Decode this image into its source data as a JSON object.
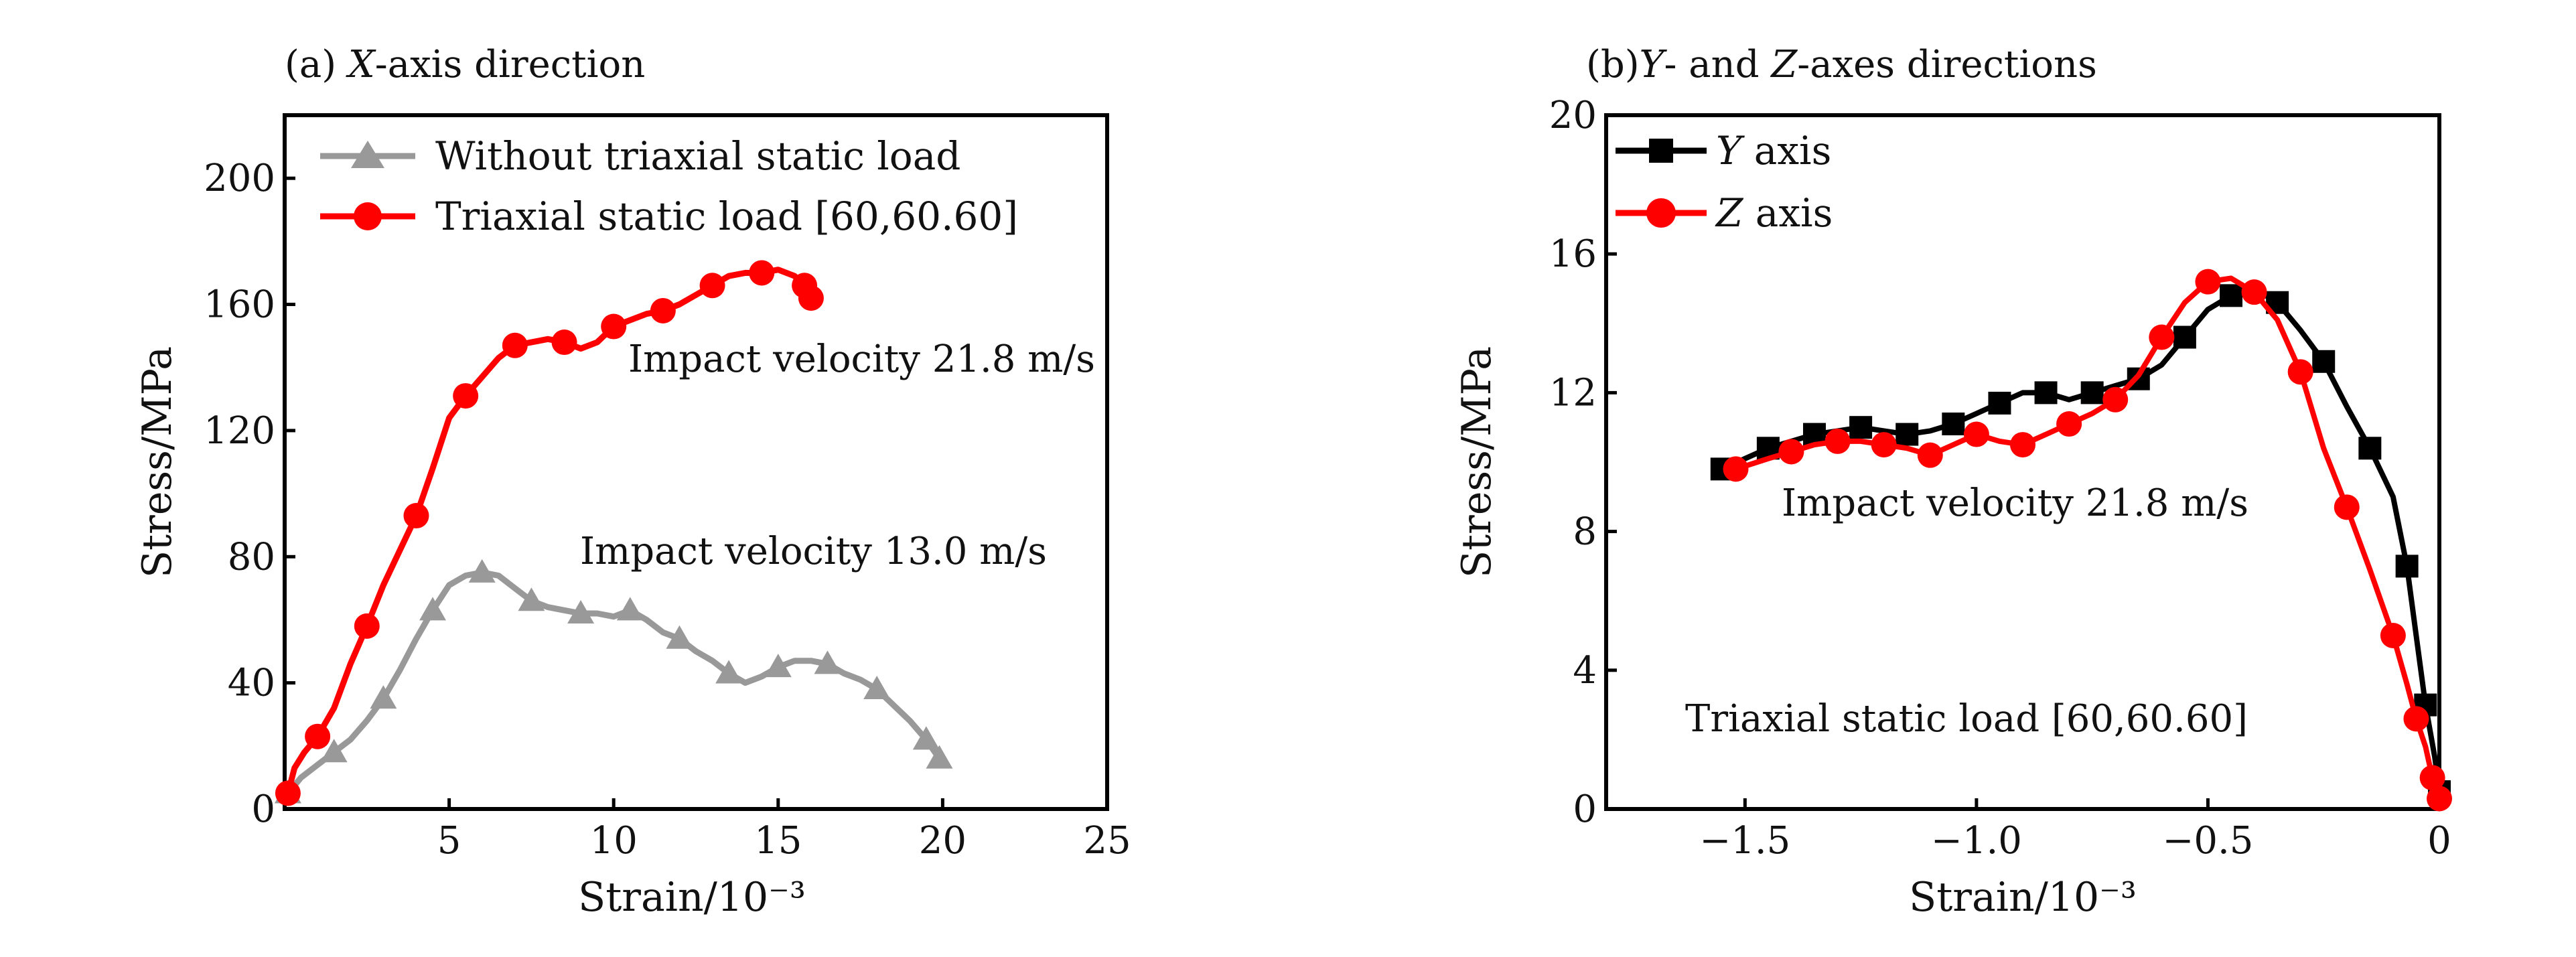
{
  "chart_data": [
    {
      "type": "line",
      "title": "(a) X-axis direction",
      "title_parts": {
        "prefix": "(a) ",
        "italic": "X",
        "suffix": "-axis direction"
      },
      "xlabel": "Strain/10⁻³",
      "ylabel": "Stress/MPa",
      "xlim": [
        0,
        25
      ],
      "ylim": [
        0,
        220
      ],
      "xticks": [
        5,
        10,
        15,
        20,
        25
      ],
      "xtick_labels": [
        "5",
        "10",
        "15",
        "20",
        "25"
      ],
      "yticks": [
        0,
        40,
        80,
        120,
        160,
        200
      ],
      "ytick_labels": [
        "0",
        "40",
        "80",
        "120",
        "160",
        "200"
      ],
      "grid": false,
      "legend_position": "top-left",
      "series": [
        {
          "name": "Without triaxial static load",
          "color": "#999999",
          "marker": "triangle",
          "x": [
            0.1,
            0.5,
            1.0,
            1.5,
            2.0,
            2.5,
            3.0,
            3.5,
            4.0,
            4.5,
            5.0,
            5.5,
            6.0,
            6.5,
            7.0,
            7.5,
            8.0,
            8.5,
            9.0,
            9.5,
            10.0,
            10.5,
            11.0,
            11.5,
            12.0,
            12.5,
            13.0,
            13.5,
            14.0,
            14.5,
            15.0,
            15.5,
            16.0,
            16.5,
            17.0,
            17.5,
            18.0,
            18.5,
            19.0,
            19.5,
            19.9
          ],
          "y": [
            5,
            10,
            14,
            18,
            22,
            28,
            35,
            44,
            54,
            63,
            71,
            74,
            75,
            74,
            70,
            66,
            64,
            63,
            62,
            62,
            61,
            63,
            60,
            56,
            54,
            50,
            47,
            43,
            40,
            42,
            45,
            47,
            47,
            46,
            43,
            41,
            38,
            33,
            28,
            22,
            16
          ]
        },
        {
          "name": "Triaxial static load [60,60.60]",
          "color": "#ff0000",
          "marker": "circle",
          "x": [
            0.1,
            0.3,
            0.6,
            1.0,
            1.5,
            2.0,
            2.5,
            3.0,
            3.5,
            4.0,
            4.5,
            5.0,
            5.5,
            6.0,
            6.5,
            7.0,
            7.5,
            8.0,
            8.5,
            9.0,
            9.5,
            10.0,
            10.5,
            11.0,
            11.5,
            12.0,
            12.5,
            13.0,
            13.5,
            14.0,
            14.5,
            15.0,
            15.5,
            15.8,
            16.0
          ],
          "y": [
            5,
            13,
            18,
            23,
            32,
            46,
            58,
            71,
            82,
            93,
            108,
            124,
            131,
            137,
            143,
            147,
            148,
            149,
            148,
            146,
            148,
            153,
            155,
            157,
            158,
            160,
            163,
            166,
            169,
            170,
            170,
            171,
            169,
            166,
            162
          ]
        }
      ],
      "annotations": [
        "Impact velocity 21.8 m/s",
        "Impact velocity 13.0 m/s"
      ]
    },
    {
      "type": "line",
      "title": "(b)Y- and Z-axes directions",
      "title_parts": {
        "prefix": "(b)",
        "italic1": "Y",
        "middle": "- and ",
        "italic2": "Z",
        "suffix": "-axes directions"
      },
      "xlabel": "Strain/10⁻³",
      "ylabel": "Stress/MPa",
      "xlim": [
        -1.8,
        0
      ],
      "ylim": [
        0,
        20
      ],
      "xticks": [
        -1.5,
        -1.0,
        -0.5,
        0
      ],
      "xtick_labels": [
        "−1.5",
        "−1.0",
        "−0.5",
        "0"
      ],
      "yticks": [
        0,
        4,
        8,
        12,
        16,
        20
      ],
      "ytick_labels": [
        "0",
        "4",
        "8",
        "12",
        "16",
        "20"
      ],
      "grid": false,
      "legend_position": "top-left",
      "series": [
        {
          "name": "Y axis",
          "name_parts": {
            "italic": "Y",
            "suffix": " axis"
          },
          "color": "#000000",
          "marker": "square",
          "x": [
            -1.55,
            -1.5,
            -1.45,
            -1.4,
            -1.35,
            -1.3,
            -1.25,
            -1.2,
            -1.15,
            -1.1,
            -1.05,
            -1.0,
            -0.95,
            -0.9,
            -0.85,
            -0.8,
            -0.75,
            -0.7,
            -0.65,
            -0.6,
            -0.55,
            -0.5,
            -0.45,
            -0.4,
            -0.35,
            -0.3,
            -0.25,
            -0.2,
            -0.15,
            -0.1,
            -0.07,
            -0.05,
            -0.03,
            -0.01,
            0
          ],
          "y": [
            9.8,
            10.1,
            10.4,
            10.6,
            10.8,
            10.9,
            11.0,
            10.9,
            10.8,
            10.9,
            11.1,
            11.4,
            11.7,
            12.0,
            12.0,
            11.8,
            12.0,
            12.2,
            12.4,
            12.8,
            13.6,
            14.4,
            14.8,
            15.0,
            14.6,
            13.8,
            12.9,
            11.6,
            10.4,
            9.0,
            7.0,
            5.0,
            3.0,
            1.5,
            0.5
          ]
        },
        {
          "name": "Z axis",
          "name_parts": {
            "italic": "Z",
            "suffix": " axis"
          },
          "color": "#ff0000",
          "marker": "circle",
          "x": [
            -1.52,
            -1.45,
            -1.4,
            -1.35,
            -1.3,
            -1.25,
            -1.2,
            -1.15,
            -1.1,
            -1.05,
            -1.0,
            -0.95,
            -0.9,
            -0.85,
            -0.8,
            -0.75,
            -0.7,
            -0.65,
            -0.6,
            -0.55,
            -0.5,
            -0.45,
            -0.4,
            -0.35,
            -0.3,
            -0.25,
            -0.2,
            -0.15,
            -0.1,
            -0.07,
            -0.05,
            -0.03,
            -0.015,
            0
          ],
          "y": [
            9.8,
            10.1,
            10.3,
            10.5,
            10.6,
            10.6,
            10.5,
            10.4,
            10.2,
            10.5,
            10.8,
            10.6,
            10.5,
            10.8,
            11.1,
            11.4,
            11.8,
            12.5,
            13.6,
            14.6,
            15.2,
            15.3,
            14.9,
            14.1,
            12.6,
            10.4,
            8.7,
            6.9,
            5.0,
            3.6,
            2.6,
            1.8,
            0.9,
            0.3
          ]
        }
      ],
      "annotations": [
        "Impact velocity 21.8 m/s",
        "Triaxial static load [60,60.60]"
      ]
    }
  ]
}
